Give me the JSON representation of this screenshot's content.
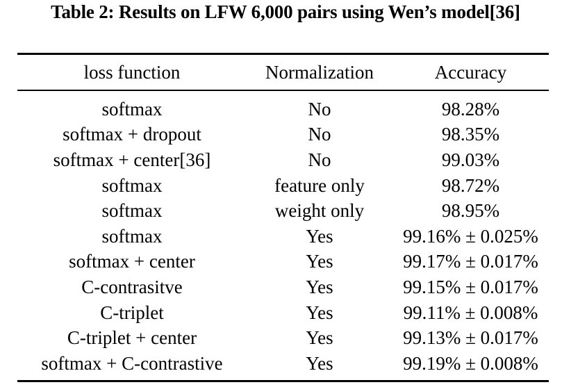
{
  "title": "Table 2: Results on LFW 6,000 pairs using Wen’s model[36]",
  "table": {
    "columns": [
      "loss function",
      "Normalization",
      "Accuracy"
    ],
    "rows": [
      {
        "loss": "softmax",
        "normalization": "No",
        "accuracy": "98.28%"
      },
      {
        "loss": "softmax + dropout",
        "normalization": "No",
        "accuracy": "98.35%"
      },
      {
        "loss": "softmax + center[36]",
        "normalization": "No",
        "accuracy": "99.03%"
      },
      {
        "loss": "softmax",
        "normalization": "feature only",
        "accuracy": "98.72%"
      },
      {
        "loss": "softmax",
        "normalization": "weight only",
        "accuracy": "98.95%"
      },
      {
        "loss": "softmax",
        "normalization": "Yes",
        "accuracy": "99.16% ± 0.025%"
      },
      {
        "loss": "softmax + center",
        "normalization": "Yes",
        "accuracy": "99.17% ± 0.017%"
      },
      {
        "loss": "C-contrasitve",
        "normalization": "Yes",
        "accuracy": "99.15% ± 0.017%"
      },
      {
        "loss": "C-triplet",
        "normalization": "Yes",
        "accuracy": "99.11% ± 0.008%"
      },
      {
        "loss": "C-triplet + center",
        "normalization": "Yes",
        "accuracy": "99.13% ± 0.017%"
      },
      {
        "loss": "softmax + C-contrastive",
        "normalization": "Yes",
        "accuracy": "99.19% ± 0.008%"
      }
    ]
  },
  "colors": {
    "text": "#000000",
    "background": "#ffffff",
    "rule": "#000000"
  }
}
